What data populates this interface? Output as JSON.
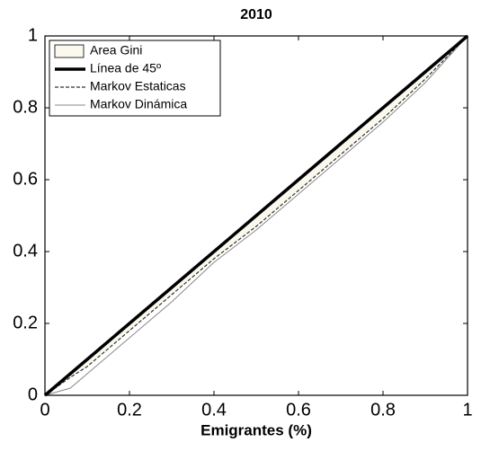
{
  "chart_data": {
    "type": "line",
    "title": "2010",
    "x_label": "Emigrantes (%)",
    "x": [
      0,
      0.06,
      0.1,
      0.2,
      0.3,
      0.4,
      0.5,
      0.6,
      0.7,
      0.8,
      0.9,
      1
    ],
    "series": [
      {
        "name": "Area Gini",
        "color": "#fbf8ee",
        "kind": "area",
        "values": [
          0,
          0.05,
          0.08,
          0.18,
          0.28,
          0.38,
          0.47,
          0.57,
          0.67,
          0.77,
          0.88,
          1
        ]
      },
      {
        "name": "Línea de 45º",
        "color": "#000000",
        "kind": "thick",
        "values": [
          0,
          0.06,
          0.1,
          0.2,
          0.3,
          0.4,
          0.5,
          0.6,
          0.7,
          0.8,
          0.9,
          1
        ]
      },
      {
        "name": "Markov Estaticas",
        "color": "#333333",
        "kind": "dashed",
        "values": [
          0,
          0.05,
          0.08,
          0.18,
          0.28,
          0.38,
          0.47,
          0.57,
          0.67,
          0.77,
          0.88,
          1
        ]
      },
      {
        "name": "Markov Dinámica",
        "color": "#888888",
        "kind": "thin",
        "values": [
          0,
          0.02,
          0.06,
          0.16,
          0.26,
          0.37,
          0.46,
          0.56,
          0.66,
          0.76,
          0.87,
          1
        ]
      }
    ],
    "xlim": [
      0,
      1
    ],
    "ylim": [
      0,
      1
    ],
    "xticks": [
      0,
      0.2,
      0.4,
      0.6,
      0.8,
      1
    ],
    "yticks": [
      0,
      0.2,
      0.4,
      0.6,
      0.8,
      1
    ],
    "legend": "upper-left"
  }
}
